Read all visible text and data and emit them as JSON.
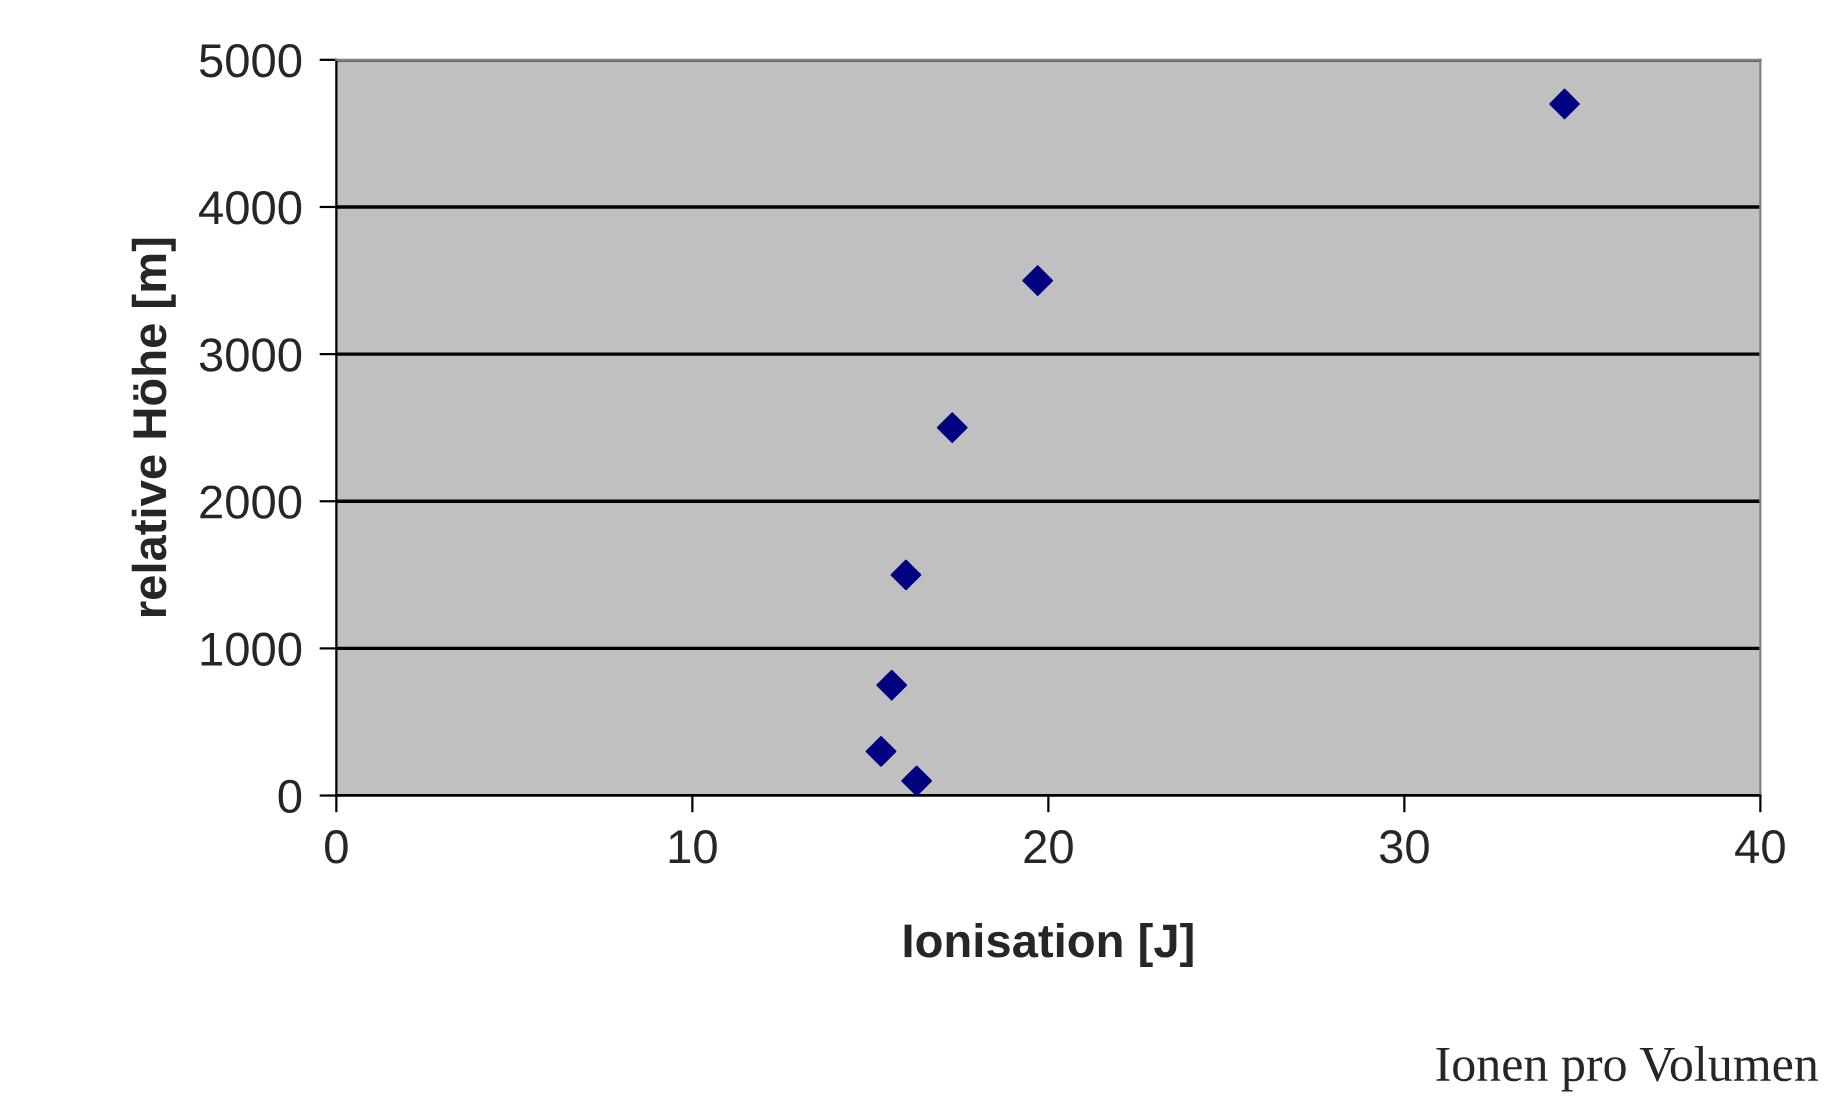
{
  "chart_data": {
    "type": "scatter",
    "xlabel": "Ionisation [J]",
    "ylabel": "relative Höhe [m]",
    "x": [
      34.5,
      19.7,
      17.3,
      16.0,
      15.6,
      15.3,
      16.3
    ],
    "series": [
      {
        "color": "#000080",
        "values": [
          4700,
          3500,
          2500,
          1500,
          750,
          300,
          100
        ]
      }
    ],
    "xlim": [
      0,
      40
    ],
    "xticks": [
      0,
      10,
      20,
      30,
      40
    ],
    "ylim": [
      0,
      5000
    ],
    "yticks": [
      0,
      1000,
      2000,
      3000,
      4000,
      5000
    ],
    "grid": "y",
    "marker": "diamond",
    "legend": false,
    "annotations": [
      "Ionen pro Volumen"
    ]
  }
}
